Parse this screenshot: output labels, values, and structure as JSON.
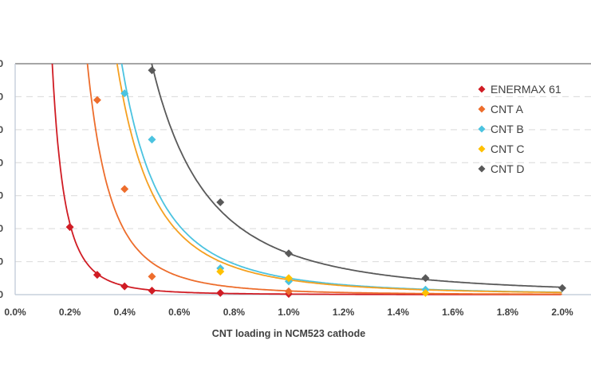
{
  "chart_data": {
    "type": "scatter",
    "title": "",
    "xlabel": "CNT loading in NCM523 cathode",
    "ylabel": "",
    "xlim": [
      0,
      2.0
    ],
    "ylim": [
      0,
      7
    ],
    "x_ticks": [
      "0.0%",
      "0.2%",
      "0.4%",
      "0.6%",
      "0.8%",
      "1.0%",
      "1.2%",
      "1.4%",
      "1.6%",
      "1.8%",
      "2.0%"
    ],
    "y_tick_visible_text": [
      "0",
      "0",
      "0",
      "0",
      "0",
      "0",
      "0",
      "0"
    ],
    "grid": "horizontal dashed",
    "legend_position": "top-right",
    "series": [
      {
        "name": "ENERMAX 61",
        "color": "#d01c24",
        "x": [
          0.2,
          0.3,
          0.4,
          0.5,
          0.75,
          1.0
        ],
        "y": [
          2.05,
          0.6,
          0.25,
          0.12,
          0.05,
          0.02
        ],
        "trendline": {
          "type": "power",
          "a": 0.0164,
          "b": 3.03
        }
      },
      {
        "name": "CNT A",
        "color": "#ed6d2c",
        "x": [
          0.3,
          0.4,
          0.5,
          1.0
        ],
        "y": [
          5.9,
          3.2,
          0.55,
          0.1
        ],
        "trendline": {
          "type": "power",
          "a": 0.113,
          "b": 3.1
        }
      },
      {
        "name": "CNT B",
        "color": "#4bc3e0",
        "x": [
          0.4,
          0.5,
          0.75,
          1.0,
          1.5
        ],
        "y": [
          6.1,
          4.7,
          0.8,
          0.4,
          0.15
        ],
        "trendline": {
          "type": "power",
          "a": 0.5,
          "b": 2.8
        }
      },
      {
        "name": "CNT C",
        "color": "#ffc000",
        "curve_color": "#f5a020",
        "x": [
          0.75,
          1.0,
          1.5
        ],
        "y": [
          0.7,
          0.5,
          0.05
        ],
        "trendline": {
          "type": "power",
          "a": 0.45,
          "b": 2.78
        }
      },
      {
        "name": "CNT D",
        "color": "#595959",
        "x": [
          0.5,
          0.75,
          1.0,
          1.5,
          2.0
        ],
        "y": [
          6.8,
          2.8,
          1.25,
          0.5,
          0.2
        ],
        "trendline": {
          "type": "power",
          "a": 1.25,
          "b": 2.48
        }
      }
    ]
  }
}
